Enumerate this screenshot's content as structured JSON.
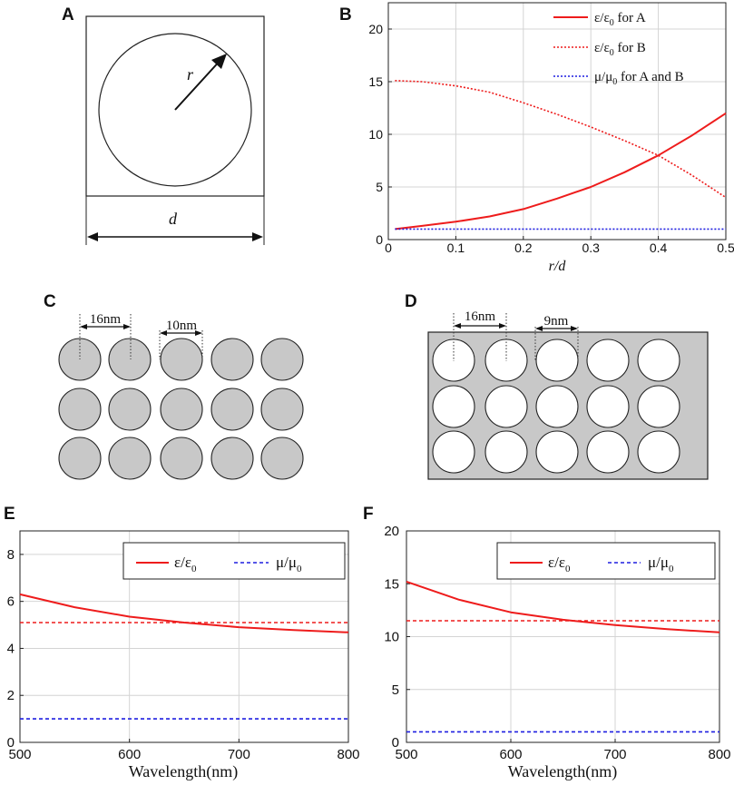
{
  "panels": {
    "A": {
      "label": "A",
      "r_label": "r",
      "d_label": "d"
    },
    "B": {
      "label": "B"
    },
    "C": {
      "label": "C",
      "dim1": "16nm",
      "dim2": "10nm"
    },
    "D": {
      "label": "D",
      "dim1": "16nm",
      "dim2": "9nm"
    },
    "E": {
      "label": "E"
    },
    "F": {
      "label": "F"
    }
  },
  "colors": {
    "red": "#ee1c1c",
    "blue": "#1f1fe0",
    "disk_fill": "#c8c8c8"
  },
  "chart_data": [
    {
      "id": "B",
      "type": "line",
      "xlabel": "r/d",
      "ylabel": "",
      "xlim": [
        0,
        0.5
      ],
      "ylim": [
        0,
        22.5
      ],
      "xticks": [
        "0",
        "0.1",
        "0.2",
        "0.3",
        "0.4",
        "0.5"
      ],
      "yticks": [
        "0",
        "5",
        "10",
        "15",
        "20"
      ],
      "legend_position": "top-right",
      "series": [
        {
          "name": "ε/ε0 for A",
          "legend_main": "ε/ε",
          "legend_sub": "0",
          "legend_rest": " for A",
          "style": "solid",
          "color": "red",
          "x": [
            0.01,
            0.05,
            0.1,
            0.15,
            0.2,
            0.25,
            0.3,
            0.35,
            0.4,
            0.45,
            0.5
          ],
          "y": [
            1.0,
            1.3,
            1.7,
            2.2,
            2.9,
            3.9,
            5.0,
            6.4,
            8.0,
            9.9,
            12.0
          ]
        },
        {
          "name": "ε/ε0 for B",
          "legend_main": "ε/ε",
          "legend_sub": "0",
          "legend_rest": " for B",
          "style": "dotted",
          "color": "red",
          "x": [
            0.01,
            0.05,
            0.1,
            0.15,
            0.2,
            0.25,
            0.3,
            0.35,
            0.4,
            0.45,
            0.5
          ],
          "y": [
            15.1,
            15.0,
            14.6,
            14.0,
            13.0,
            11.9,
            10.7,
            9.4,
            8.0,
            6.1,
            4.0
          ]
        },
        {
          "name": "μ/μ0 for A and B",
          "legend_main": "μ/μ",
          "legend_sub": "0",
          "legend_rest": " for A and B",
          "style": "dotted",
          "color": "blue",
          "x": [
            0.01,
            0.5
          ],
          "y": [
            1.0,
            1.0
          ]
        }
      ]
    },
    {
      "id": "E",
      "type": "line",
      "xlabel": "Wavelength(nm)",
      "ylabel": "",
      "xlim": [
        500,
        800
      ],
      "ylim": [
        0,
        9
      ],
      "xticks": [
        "500",
        "600",
        "700",
        "800"
      ],
      "yticks": [
        "0",
        "2",
        "4",
        "6",
        "8"
      ],
      "legend_position": "top-right",
      "series": [
        {
          "name": "ε/ε0",
          "legend_main": "ε/ε",
          "legend_sub": "0",
          "style": "solid",
          "color": "red",
          "x": [
            500,
            550,
            600,
            650,
            700,
            750,
            800
          ],
          "y": [
            6.3,
            5.75,
            5.35,
            5.1,
            4.9,
            4.78,
            4.68
          ]
        },
        {
          "name": "ε/ε0 (dashed)",
          "style": "dashed",
          "color": "red",
          "x": [
            500,
            800
          ],
          "y": [
            5.1,
            5.1
          ]
        },
        {
          "name": "μ/μ0",
          "legend_main": "μ/μ",
          "legend_sub": "0",
          "style": "dashed",
          "color": "blue",
          "x": [
            500,
            800
          ],
          "y": [
            1.0,
            1.0
          ]
        }
      ]
    },
    {
      "id": "F",
      "type": "line",
      "xlabel": "Wavelength(nm)",
      "ylabel": "",
      "xlim": [
        500,
        800
      ],
      "ylim": [
        0,
        20
      ],
      "xticks": [
        "500",
        "600",
        "700",
        "800"
      ],
      "yticks": [
        "0",
        "5",
        "10",
        "15",
        "20"
      ],
      "legend_position": "top-right",
      "series": [
        {
          "name": "ε/ε0",
          "legend_main": "ε/ε",
          "legend_sub": "0",
          "style": "solid",
          "color": "red",
          "x": [
            500,
            550,
            600,
            650,
            700,
            750,
            800
          ],
          "y": [
            15.2,
            13.5,
            12.3,
            11.6,
            11.1,
            10.7,
            10.4
          ]
        },
        {
          "name": "ε/ε0 (dashed)",
          "style": "dashed",
          "color": "red",
          "x": [
            500,
            800
          ],
          "y": [
            11.5,
            11.5
          ]
        },
        {
          "name": "μ/μ0",
          "legend_main": "μ/μ",
          "legend_sub": "0",
          "style": "dashed",
          "color": "blue",
          "x": [
            500,
            800
          ],
          "y": [
            1.0,
            1.0
          ]
        }
      ]
    }
  ]
}
